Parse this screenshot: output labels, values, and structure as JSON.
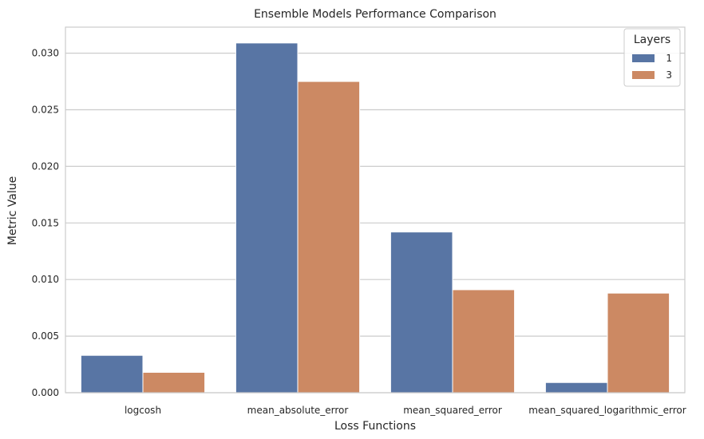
{
  "chart_data": {
    "type": "bar",
    "title": "Ensemble Models Performance Comparison",
    "xlabel": "Loss Functions",
    "ylabel": "Metric Value",
    "categories": [
      "logcosh",
      "mean_absolute_error",
      "mean_squared_error",
      "mean_squared_logarithmic_error"
    ],
    "series": [
      {
        "name": "1",
        "values": [
          0.0033,
          0.0309,
          0.0142,
          0.0009
        ],
        "color": "#5875a4"
      },
      {
        "name": "3",
        "values": [
          0.0018,
          0.0275,
          0.0091,
          0.0088
        ],
        "color": "#cc8963"
      }
    ],
    "ylim": [
      0,
      0.0323
    ],
    "yticks": [
      "0.000",
      "0.005",
      "0.010",
      "0.015",
      "0.020",
      "0.025",
      "0.030"
    ],
    "ytick_values": [
      0,
      0.005,
      0.01,
      0.015,
      0.02,
      0.025,
      0.03
    ],
    "legend": {
      "title": "Layers",
      "placement": "top-right"
    },
    "grid": {
      "y": true,
      "x": false
    },
    "colors": {
      "grid": "#cccccc",
      "frame": "#cccccc",
      "text": "#262626"
    }
  }
}
